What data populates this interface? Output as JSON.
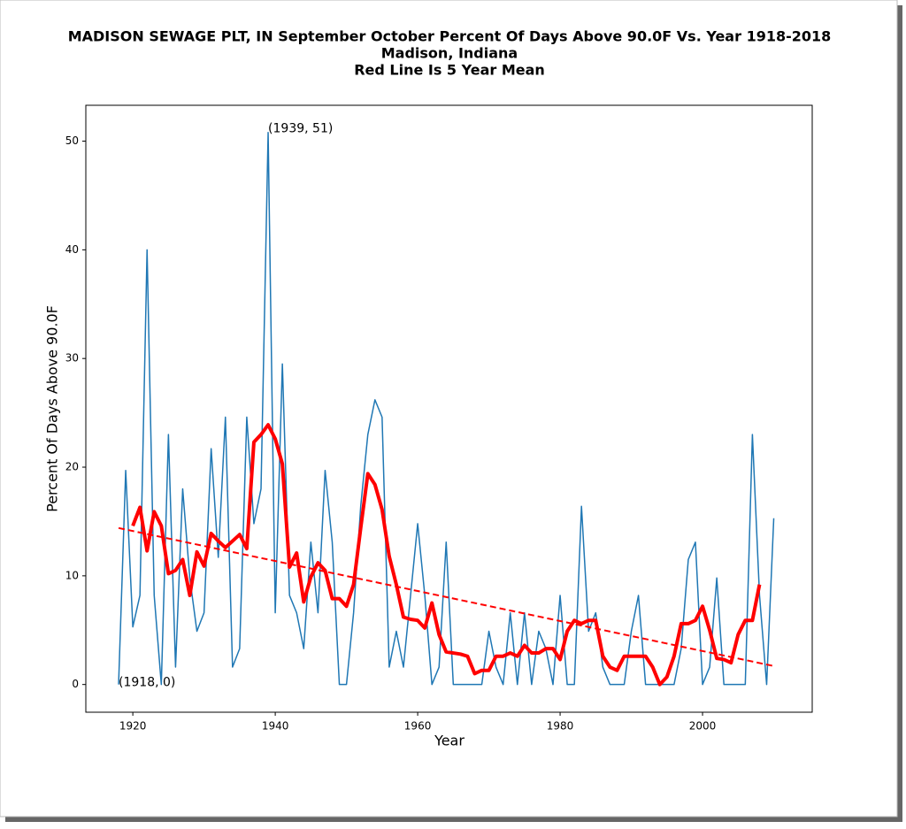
{
  "chart_data": {
    "type": "line",
    "title": [
      "MADISON SEWAGE PLT, IN  September October Percent Of Days Above 90.0F Vs. Year 1918-2018",
      "Madison, Indiana",
      "Red Line Is 5 Year Mean"
    ],
    "xlabel": "Year",
    "ylabel": "Percent Of Days Above 90.0F",
    "xlim": [
      1913.4,
      2015.4
    ],
    "ylim": [
      -2.55,
      53.3
    ],
    "xticks": [
      1920,
      1940,
      1960,
      1980,
      2000
    ],
    "yticks": [
      0,
      10,
      20,
      30,
      40,
      50
    ],
    "series": [
      {
        "color": "#1f77b4",
        "linestyle": "solid",
        "x": [
          1918,
          1919,
          1920,
          1921,
          1922,
          1923,
          1924,
          1925,
          1926,
          1927,
          1928,
          1929,
          1930,
          1931,
          1932,
          1933,
          1934,
          1935,
          1936,
          1937,
          1938,
          1939,
          1940,
          1941,
          1942,
          1943,
          1944,
          1945,
          1946,
          1947,
          1948,
          1949,
          1950,
          1951,
          1952,
          1953,
          1954,
          1955,
          1956,
          1957,
          1958,
          1959,
          1960,
          1961,
          1962,
          1963,
          1964,
          1965,
          1966,
          1967,
          1968,
          1969,
          1970,
          1971,
          1972,
          1973,
          1974,
          1975,
          1976,
          1977,
          1978,
          1979,
          1980,
          1981,
          1982,
          1983,
          1984,
          1985,
          1986,
          1987,
          1988,
          1989,
          1990,
          1991,
          1992,
          1993,
          1994,
          1995,
          1996,
          1997,
          1998,
          1999,
          2000,
          2001,
          2002,
          2003,
          2004,
          2005,
          2006,
          2007,
          2008,
          2009,
          2010
        ],
        "values": [
          0,
          19.7,
          5.3,
          8.2,
          40,
          8.2,
          0,
          23,
          1.6,
          18,
          9.8,
          4.9,
          6.6,
          21.7,
          11.7,
          24.6,
          1.6,
          3.3,
          24.6,
          14.8,
          18,
          50.8,
          6.6,
          29.5,
          8.2,
          6.6,
          3.3,
          13.1,
          6.6,
          19.7,
          13.1,
          0,
          0,
          6.6,
          16.4,
          23,
          26.2,
          24.6,
          1.6,
          4.9,
          1.6,
          8.2,
          14.8,
          8.2,
          0,
          1.6,
          13.1,
          0,
          0,
          0,
          0,
          0,
          4.9,
          1.6,
          0,
          6.6,
          0,
          6.6,
          0,
          4.9,
          3.3,
          0,
          8.2,
          0,
          0,
          16.4,
          4.9,
          6.6,
          1.6,
          0,
          0,
          0,
          4.9,
          8.2,
          0,
          0,
          0,
          0,
          0,
          3.3,
          11.5,
          13.1,
          0,
          1.6,
          9.8,
          0,
          0,
          0,
          0,
          23,
          8.2,
          0,
          15.3
        ]
      },
      {
        "color": "#ff0000",
        "linestyle": "solid",
        "x": [
          1920,
          1921,
          1922,
          1923,
          1924,
          1925,
          1926,
          1927,
          1928,
          1929,
          1930,
          1931,
          1932,
          1933,
          1934,
          1935,
          1936,
          1937,
          1938,
          1939,
          1940,
          1941,
          1942,
          1943,
          1944,
          1945,
          1946,
          1947,
          1948,
          1949,
          1950,
          1951,
          1952,
          1953,
          1954,
          1955,
          1956,
          1957,
          1958,
          1959,
          1960,
          1961,
          1962,
          1963,
          1964,
          1965,
          1966,
          1967,
          1968,
          1969,
          1970,
          1971,
          1972,
          1973,
          1974,
          1975,
          1976,
          1977,
          1978,
          1979,
          1980,
          1981,
          1982,
          1983,
          1984,
          1985,
          1986,
          1987,
          1988,
          1989,
          1990,
          1991,
          1992,
          1993,
          1994,
          1995,
          1996,
          1997,
          1998,
          1999,
          2000,
          2001,
          2002,
          2003,
          2004,
          2005,
          2006,
          2007,
          2008
        ],
        "values": [
          14.6,
          16.3,
          12.3,
          15.9,
          14.6,
          10.2,
          10.5,
          11.5,
          8.2,
          12.2,
          10.9,
          13.9,
          13.2,
          12.6,
          13.2,
          13.8,
          12.5,
          22.3,
          23.0,
          23.9,
          22.6,
          20.3,
          10.8,
          12.1,
          7.6,
          9.9,
          11.2,
          10.5,
          7.9,
          7.9,
          7.2,
          9.2,
          14.4,
          19.4,
          18.4,
          16.1,
          11.8,
          9.2,
          6.2,
          6.0,
          5.9,
          5.2,
          7.5,
          4.6,
          3.0,
          2.9,
          2.8,
          2.6,
          1.0,
          1.3,
          1.3,
          2.6,
          2.6,
          2.9,
          2.6,
          3.6,
          2.9,
          2.9,
          3.3,
          3.3,
          2.3,
          4.9,
          5.9,
          5.6,
          5.9,
          5.9,
          2.6,
          1.6,
          1.3,
          2.6,
          2.6,
          2.6,
          2.6,
          1.6,
          0,
          0.7,
          2.6,
          5.6,
          5.6,
          5.9,
          7.2,
          5.0,
          2.4,
          2.3,
          2.0,
          4.6,
          5.9,
          5.9,
          9.2
        ]
      },
      {
        "color": "#ff0000",
        "linestyle": "dashed",
        "x": [
          1918,
          2010
        ],
        "values": [
          14.4,
          1.7
        ]
      }
    ],
    "annotations": [
      {
        "text": "(1939, 51)",
        "x": 1939,
        "y": 51
      },
      {
        "text": "(1918, 0)",
        "x": 1918,
        "y": 0
      }
    ]
  }
}
